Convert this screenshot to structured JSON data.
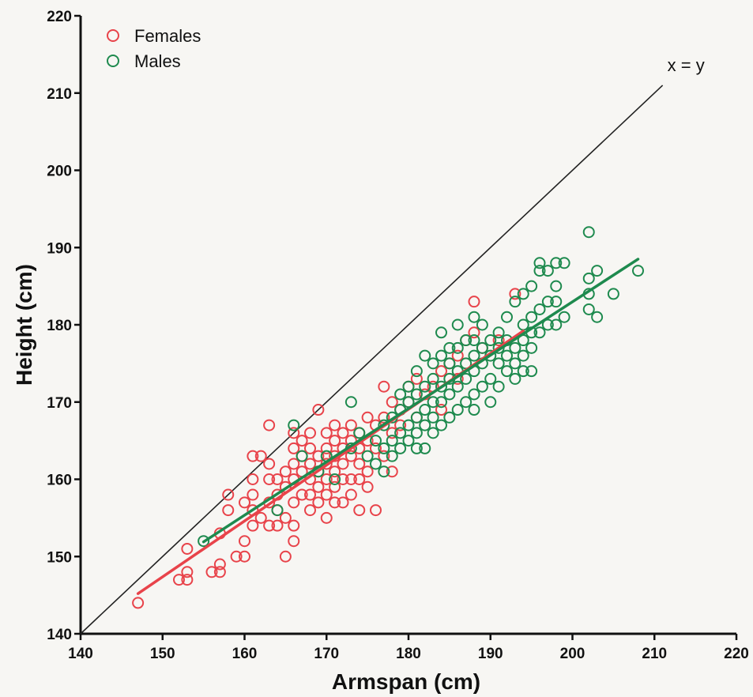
{
  "chart_data": {
    "type": "scatter",
    "xlabel": "Armspan (cm)",
    "ylabel": "Height (cm)",
    "xlim": [
      140,
      220
    ],
    "ylim": [
      140,
      220
    ],
    "xticks": [
      "140",
      "150",
      "160",
      "170",
      "180",
      "190",
      "200",
      "210",
      "220"
    ],
    "yticks": [
      "140",
      "150",
      "160",
      "170",
      "180",
      "190",
      "200",
      "210",
      "220"
    ],
    "grid": false,
    "legend_position": "top-left",
    "reference_line": {
      "label": "x = y",
      "from": [
        140,
        140
      ],
      "to": [
        211,
        211
      ],
      "color": "#222222"
    },
    "series": [
      {
        "name": "Females",
        "color": "#e8434a",
        "marker": "open-circle",
        "fit_line": {
          "from": [
            147,
            145.2
          ],
          "to": [
            194,
            179.2
          ]
        },
        "points": [
          [
            147,
            144
          ],
          [
            152,
            147
          ],
          [
            153,
            147
          ],
          [
            153,
            148
          ],
          [
            153,
            151
          ],
          [
            156,
            148
          ],
          [
            157,
            148
          ],
          [
            157,
            149
          ],
          [
            157,
            153
          ],
          [
            158,
            156
          ],
          [
            158,
            158
          ],
          [
            159,
            150
          ],
          [
            160,
            150
          ],
          [
            160,
            152
          ],
          [
            160,
            157
          ],
          [
            161,
            154
          ],
          [
            161,
            156
          ],
          [
            161,
            158
          ],
          [
            161,
            160
          ],
          [
            161,
            163
          ],
          [
            162,
            155
          ],
          [
            162,
            163
          ],
          [
            163,
            154
          ],
          [
            163,
            157
          ],
          [
            163,
            160
          ],
          [
            163,
            162
          ],
          [
            163,
            167
          ],
          [
            164,
            154
          ],
          [
            164,
            156
          ],
          [
            164,
            158
          ],
          [
            164,
            160
          ],
          [
            165,
            150
          ],
          [
            165,
            155
          ],
          [
            165,
            159
          ],
          [
            165,
            161
          ],
          [
            166,
            152
          ],
          [
            166,
            154
          ],
          [
            166,
            157
          ],
          [
            166,
            160
          ],
          [
            166,
            162
          ],
          [
            166,
            164
          ],
          [
            166,
            166
          ],
          [
            167,
            158
          ],
          [
            167,
            161
          ],
          [
            167,
            163
          ],
          [
            167,
            165
          ],
          [
            168,
            156
          ],
          [
            168,
            158
          ],
          [
            168,
            160
          ],
          [
            168,
            162
          ],
          [
            168,
            164
          ],
          [
            168,
            166
          ],
          [
            169,
            157
          ],
          [
            169,
            159
          ],
          [
            169,
            161
          ],
          [
            169,
            163
          ],
          [
            169,
            169
          ],
          [
            170,
            155
          ],
          [
            170,
            158
          ],
          [
            170,
            160
          ],
          [
            170,
            162
          ],
          [
            170,
            164
          ],
          [
            170,
            166
          ],
          [
            171,
            157
          ],
          [
            171,
            159
          ],
          [
            171,
            161
          ],
          [
            171,
            163
          ],
          [
            171,
            165
          ],
          [
            171,
            167
          ],
          [
            172,
            157
          ],
          [
            172,
            160
          ],
          [
            172,
            162
          ],
          [
            172,
            164
          ],
          [
            172,
            166
          ],
          [
            173,
            158
          ],
          [
            173,
            160
          ],
          [
            173,
            163
          ],
          [
            173,
            165
          ],
          [
            173,
            167
          ],
          [
            174,
            156
          ],
          [
            174,
            160
          ],
          [
            174,
            162
          ],
          [
            174,
            164
          ],
          [
            174,
            166
          ],
          [
            175,
            159
          ],
          [
            175,
            161
          ],
          [
            175,
            165
          ],
          [
            175,
            168
          ],
          [
            176,
            156
          ],
          [
            176,
            164
          ],
          [
            176,
            167
          ],
          [
            177,
            163
          ],
          [
            177,
            168
          ],
          [
            177,
            172
          ],
          [
            178,
            161
          ],
          [
            178,
            166
          ],
          [
            178,
            170
          ],
          [
            179,
            167
          ],
          [
            179,
            169
          ],
          [
            180,
            170
          ],
          [
            180,
            172
          ],
          [
            181,
            168
          ],
          [
            181,
            173
          ],
          [
            182,
            171
          ],
          [
            183,
            172
          ],
          [
            184,
            174
          ],
          [
            184,
            169
          ],
          [
            185,
            175
          ],
          [
            186,
            176
          ],
          [
            186,
            173
          ],
          [
            187,
            178
          ],
          [
            188,
            179
          ],
          [
            188,
            183
          ],
          [
            189,
            177
          ],
          [
            191,
            178
          ],
          [
            193,
            184
          ]
        ]
      },
      {
        "name": "Males",
        "color": "#1e8a4e",
        "marker": "open-circle",
        "fit_line": {
          "from": [
            155,
            151.9
          ],
          "to": [
            208,
            188.5
          ]
        },
        "points": [
          [
            155,
            152
          ],
          [
            164,
            156
          ],
          [
            166,
            167
          ],
          [
            167,
            163
          ],
          [
            169,
            161
          ],
          [
            170,
            163
          ],
          [
            171,
            160
          ],
          [
            173,
            164
          ],
          [
            173,
            170
          ],
          [
            174,
            166
          ],
          [
            175,
            163
          ],
          [
            176,
            162
          ],
          [
            176,
            165
          ],
          [
            177,
            161
          ],
          [
            177,
            164
          ],
          [
            177,
            167
          ],
          [
            178,
            163
          ],
          [
            178,
            165
          ],
          [
            178,
            168
          ],
          [
            179,
            164
          ],
          [
            179,
            166
          ],
          [
            179,
            169
          ],
          [
            179,
            171
          ],
          [
            180,
            165
          ],
          [
            180,
            167
          ],
          [
            180,
            170
          ],
          [
            180,
            172
          ],
          [
            181,
            164
          ],
          [
            181,
            166
          ],
          [
            181,
            168
          ],
          [
            181,
            171
          ],
          [
            181,
            174
          ],
          [
            182,
            164
          ],
          [
            182,
            167
          ],
          [
            182,
            169
          ],
          [
            182,
            172
          ],
          [
            182,
            176
          ],
          [
            183,
            166
          ],
          [
            183,
            168
          ],
          [
            183,
            170
          ],
          [
            183,
            173
          ],
          [
            183,
            175
          ],
          [
            184,
            167
          ],
          [
            184,
            170
          ],
          [
            184,
            172
          ],
          [
            184,
            176
          ],
          [
            184,
            179
          ],
          [
            185,
            168
          ],
          [
            185,
            171
          ],
          [
            185,
            173
          ],
          [
            185,
            175
          ],
          [
            185,
            177
          ],
          [
            186,
            169
          ],
          [
            186,
            172
          ],
          [
            186,
            174
          ],
          [
            186,
            177
          ],
          [
            186,
            180
          ],
          [
            187,
            170
          ],
          [
            187,
            173
          ],
          [
            187,
            175
          ],
          [
            187,
            178
          ],
          [
            188,
            169
          ],
          [
            188,
            171
          ],
          [
            188,
            174
          ],
          [
            188,
            176
          ],
          [
            188,
            178
          ],
          [
            188,
            181
          ],
          [
            189,
            172
          ],
          [
            189,
            175
          ],
          [
            189,
            177
          ],
          [
            189,
            180
          ],
          [
            190,
            170
          ],
          [
            190,
            173
          ],
          [
            190,
            176
          ],
          [
            190,
            178
          ],
          [
            191,
            172
          ],
          [
            191,
            175
          ],
          [
            191,
            177
          ],
          [
            191,
            179
          ],
          [
            192,
            174
          ],
          [
            192,
            176
          ],
          [
            192,
            178
          ],
          [
            192,
            181
          ],
          [
            193,
            173
          ],
          [
            193,
            175
          ],
          [
            193,
            177
          ],
          [
            193,
            183
          ],
          [
            194,
            174
          ],
          [
            194,
            176
          ],
          [
            194,
            178
          ],
          [
            194,
            180
          ],
          [
            194,
            184
          ],
          [
            195,
            174
          ],
          [
            195,
            177
          ],
          [
            195,
            179
          ],
          [
            195,
            181
          ],
          [
            195,
            185
          ],
          [
            196,
            179
          ],
          [
            196,
            182
          ],
          [
            196,
            187
          ],
          [
            196,
            188
          ],
          [
            197,
            180
          ],
          [
            197,
            183
          ],
          [
            197,
            187
          ],
          [
            198,
            180
          ],
          [
            198,
            183
          ],
          [
            198,
            185
          ],
          [
            198,
            188
          ],
          [
            199,
            188
          ],
          [
            199,
            181
          ],
          [
            202,
            182
          ],
          [
            202,
            184
          ],
          [
            202,
            186
          ],
          [
            202,
            192
          ],
          [
            203,
            187
          ],
          [
            203,
            181
          ],
          [
            205,
            184
          ],
          [
            208,
            187
          ]
        ]
      }
    ]
  }
}
